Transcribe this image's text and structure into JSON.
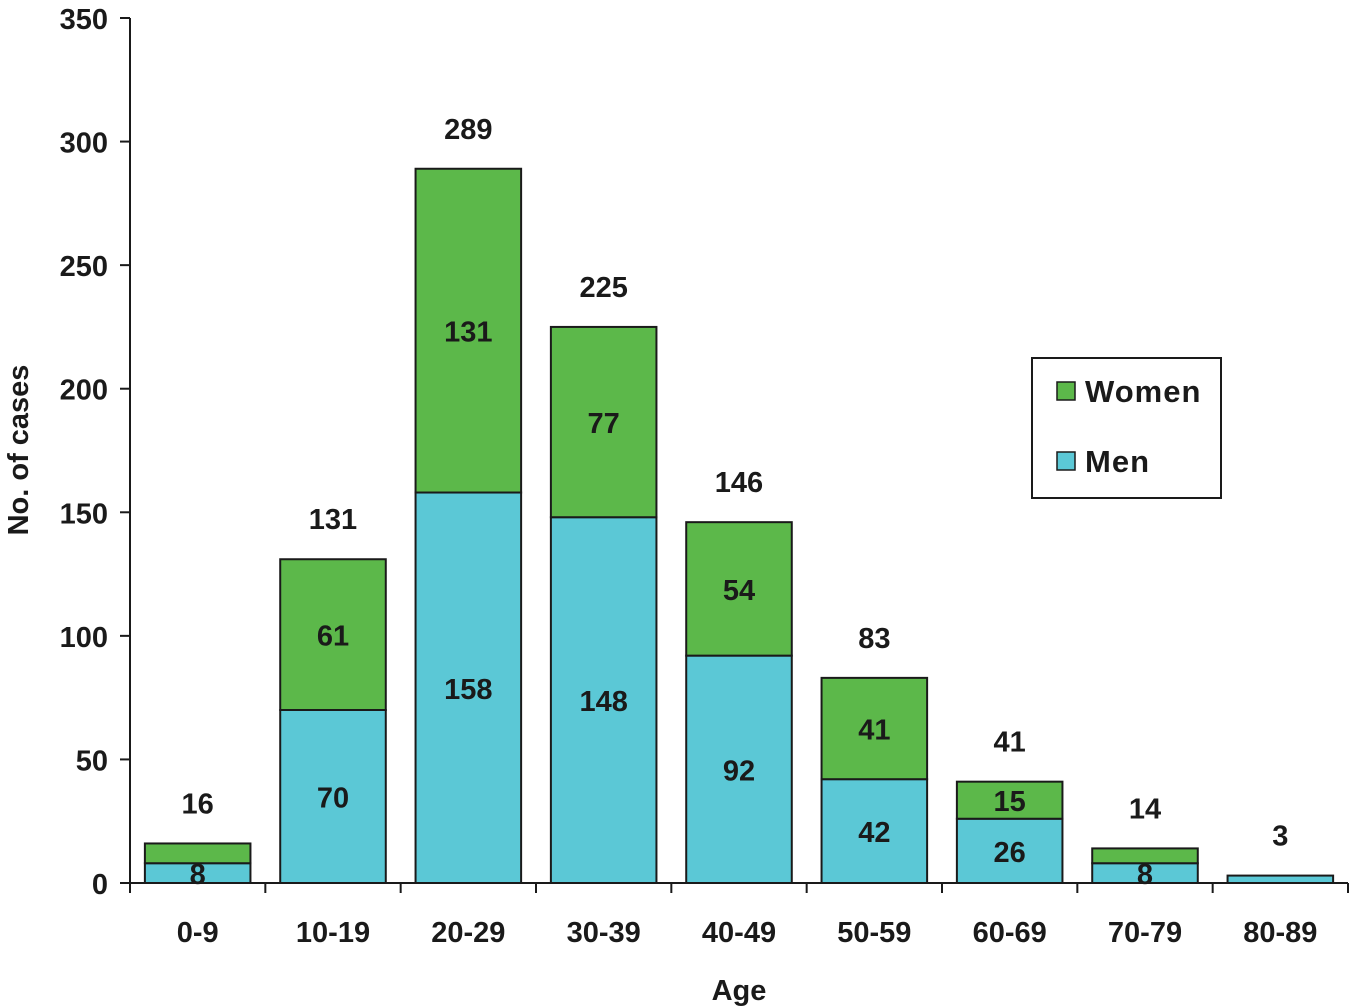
{
  "chart_data": {
    "type": "bar",
    "stacked": true,
    "categories": [
      "0-9",
      "10-19",
      "20-29",
      "30-39",
      "40-49",
      "50-59",
      "60-69",
      "70-79",
      "80-89"
    ],
    "series": [
      {
        "name": "Men",
        "color": "#5bc8d6",
        "values": [
          8,
          70,
          158,
          148,
          92,
          42,
          26,
          8,
          3
        ]
      },
      {
        "name": "Women",
        "color": "#5cb84a",
        "values": [
          8,
          61,
          131,
          77,
          54,
          41,
          15,
          6,
          0
        ]
      }
    ],
    "segment_labels": {
      "Men": [
        "8",
        "70",
        "158",
        "148",
        "92",
        "42",
        "26",
        "8",
        ""
      ],
      "Women": [
        "",
        "61",
        "131",
        "77",
        "54",
        "41",
        "15",
        "",
        ""
      ]
    },
    "totals": [
      16,
      131,
      289,
      225,
      146,
      83,
      41,
      14,
      3
    ],
    "xlabel": "Age",
    "ylabel": "No. of cases",
    "ylim": [
      0,
      350
    ],
    "yticks": [
      0,
      50,
      100,
      150,
      200,
      250,
      300,
      350
    ],
    "grid": false,
    "legend": {
      "position": "right",
      "entries": [
        "Women",
        "Men"
      ]
    }
  }
}
